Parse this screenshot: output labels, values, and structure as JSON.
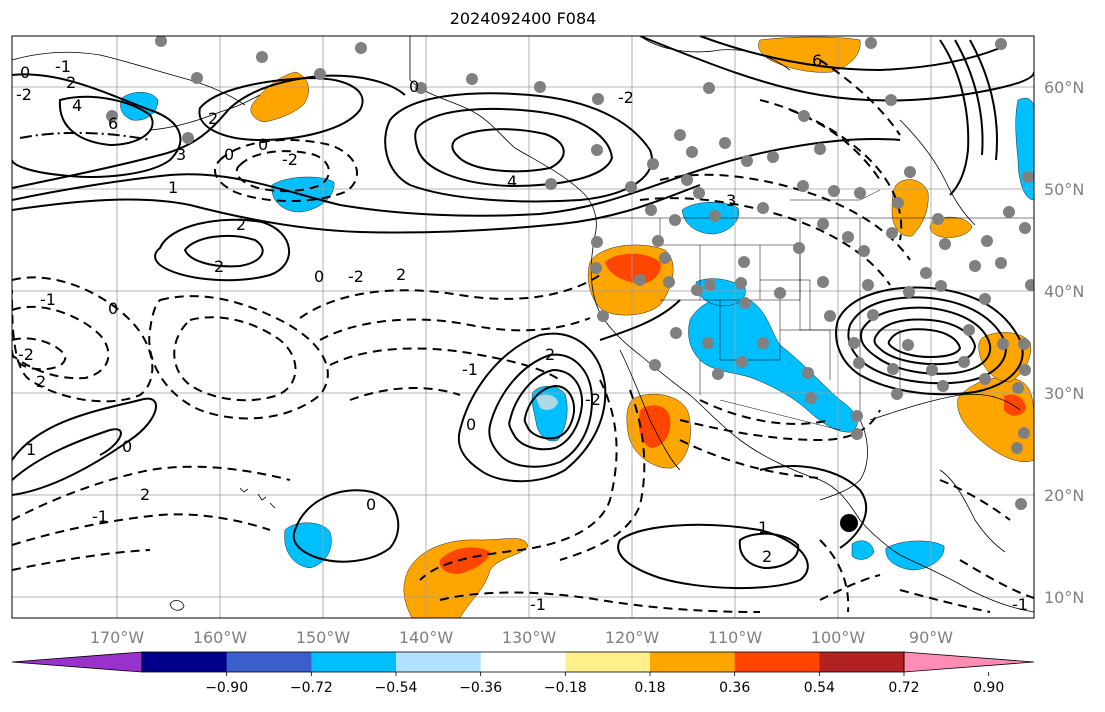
{
  "title": "2024092400 F084",
  "map": {
    "lat_labels": [
      "60°N",
      "50°N",
      "40°N",
      "30°N",
      "20°N",
      "10°N"
    ],
    "lon_labels": [
      "170°W",
      "160°W",
      "150°W",
      "140°W",
      "130°W",
      "120°W",
      "110°W",
      "100°W",
      "90°W"
    ],
    "contour_labels": [
      "0",
      "2",
      "4",
      "6",
      "-2",
      "-1",
      "0",
      "2",
      "1",
      "0",
      "3",
      "-2",
      "2",
      "2",
      "4",
      "0",
      "-2",
      "-1",
      "2",
      "-2",
      "1",
      "0",
      "-1",
      "0",
      "2",
      "2",
      "-1",
      "0",
      "-1",
      "-2",
      "0",
      "1",
      "2",
      "3",
      "-2",
      "-1",
      "2",
      "0",
      "6"
    ],
    "fill_colors": {
      "orange": "#ffa500",
      "red": "#ff4500",
      "cyan": "#00bfff",
      "light_blue": "#add8e6"
    },
    "station_color": "#808080",
    "marker_color": "#000000"
  },
  "colorbar": {
    "ticks": [
      "−0.90",
      "−0.72",
      "−0.54",
      "−0.36",
      "−0.18",
      "0.18",
      "0.36",
      "0.54",
      "0.72",
      "0.90"
    ],
    "colors": [
      "#9932cc",
      "#00008b",
      "#3a5fcd",
      "#00bfff",
      "#b0e2ff",
      "#ffffff",
      "#fff08c",
      "#ffa500",
      "#ff4500",
      "#b22222",
      "#ff8cb4"
    ]
  }
}
